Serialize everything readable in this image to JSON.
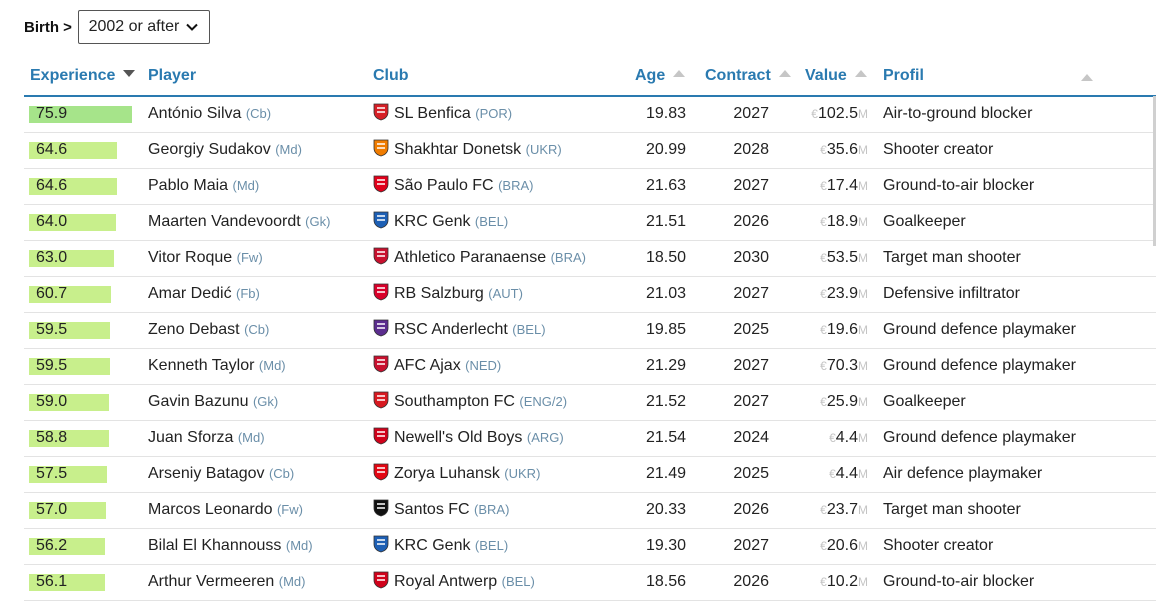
{
  "filter": {
    "label": "Birth >",
    "value": "2002 or after"
  },
  "columns": {
    "experience": "Experience",
    "player": "Player",
    "club": "Club",
    "age": "Age",
    "contract": "Contract",
    "value": "Value",
    "profil": "Profil"
  },
  "currency": "€",
  "unit": "M",
  "rows": [
    {
      "exp": "75.9",
      "player": "António Silva",
      "pos": "(Cb)",
      "club": "SL Benfica",
      "country": "(POR)",
      "age": "19.83",
      "contract": "2027",
      "value": "102.5",
      "profil": "Air-to-ground blocker",
      "crest": "benfica-crest-icon",
      "color": "#d61f26"
    },
    {
      "exp": "64.6",
      "player": "Georgiy Sudakov",
      "pos": "(Md)",
      "club": "Shakhtar Donetsk",
      "country": "(UKR)",
      "age": "20.99",
      "contract": "2028",
      "value": "35.6",
      "profil": "Shooter creator",
      "crest": "shakhtar-crest-icon",
      "color": "#f07c00"
    },
    {
      "exp": "64.6",
      "player": "Pablo Maia",
      "pos": "(Md)",
      "club": "São Paulo FC",
      "country": "(BRA)",
      "age": "21.63",
      "contract": "2027",
      "value": "17.4",
      "profil": "Ground-to-air blocker",
      "crest": "sao-paulo-crest-icon",
      "color": "#e0001a"
    },
    {
      "exp": "64.0",
      "player": "Maarten Vandevoordt",
      "pos": "(Gk)",
      "club": "KRC Genk",
      "country": "(BEL)",
      "age": "21.51",
      "contract": "2026",
      "value": "18.9",
      "profil": "Goalkeeper",
      "crest": "genk-crest-icon",
      "color": "#1d5fb4"
    },
    {
      "exp": "63.0",
      "player": "Vitor Roque",
      "pos": "(Fw)",
      "club": "Athletico Paranaense",
      "country": "(BRA)",
      "age": "18.50",
      "contract": "2030",
      "value": "53.5",
      "profil": "Target man shooter",
      "crest": "athletico-crest-icon",
      "color": "#c8102e"
    },
    {
      "exp": "60.7",
      "player": "Amar Dedić",
      "pos": "(Fb)",
      "club": "RB Salzburg",
      "country": "(AUT)",
      "age": "21.03",
      "contract": "2027",
      "value": "23.9",
      "profil": "Defensive infiltrator",
      "crest": "salzburg-crest-icon",
      "color": "#d9002a"
    },
    {
      "exp": "59.5",
      "player": "Zeno Debast",
      "pos": "(Cb)",
      "club": "RSC Anderlecht",
      "country": "(BEL)",
      "age": "19.85",
      "contract": "2025",
      "value": "19.6",
      "profil": "Ground defence playmaker",
      "crest": "anderlecht-crest-icon",
      "color": "#5b2d8e"
    },
    {
      "exp": "59.5",
      "player": "Kenneth Taylor",
      "pos": "(Md)",
      "club": "AFC Ajax",
      "country": "(NED)",
      "age": "21.29",
      "contract": "2027",
      "value": "70.3",
      "profil": "Ground defence playmaker",
      "crest": "ajax-crest-icon",
      "color": "#c8102e"
    },
    {
      "exp": "59.0",
      "player": "Gavin Bazunu",
      "pos": "(Gk)",
      "club": "Southampton FC",
      "country": "(ENG/2)",
      "age": "21.52",
      "contract": "2027",
      "value": "25.9",
      "profil": "Goalkeeper",
      "crest": "southampton-crest-icon",
      "color": "#d71920"
    },
    {
      "exp": "58.8",
      "player": "Juan Sforza",
      "pos": "(Md)",
      "club": "Newell's Old Boys",
      "country": "(ARG)",
      "age": "21.54",
      "contract": "2024",
      "value": "4.4",
      "profil": "Ground defence playmaker",
      "crest": "newells-crest-icon",
      "color": "#d0021b"
    },
    {
      "exp": "57.5",
      "player": "Arseniy Batagov",
      "pos": "(Cb)",
      "club": "Zorya Luhansk",
      "country": "(UKR)",
      "age": "21.49",
      "contract": "2025",
      "value": "4.4",
      "profil": "Air defence playmaker",
      "crest": "zorya-crest-icon",
      "color": "#e30613"
    },
    {
      "exp": "57.0",
      "player": "Marcos Leonardo",
      "pos": "(Fw)",
      "club": "Santos FC",
      "country": "(BRA)",
      "age": "20.33",
      "contract": "2026",
      "value": "23.7",
      "profil": "Target man shooter",
      "crest": "santos-crest-icon",
      "color": "#111111"
    },
    {
      "exp": "56.2",
      "player": "Bilal El Khannouss",
      "pos": "(Md)",
      "club": "KRC Genk",
      "country": "(BEL)",
      "age": "19.30",
      "contract": "2027",
      "value": "20.6",
      "profil": "Shooter creator",
      "crest": "genk-crest-icon",
      "color": "#1d5fb4"
    },
    {
      "exp": "56.1",
      "player": "Arthur Vermeeren",
      "pos": "(Md)",
      "club": "Royal Antwerp",
      "country": "(BEL)",
      "age": "18.56",
      "contract": "2026",
      "value": "10.2",
      "profil": "Ground-to-air blocker",
      "crest": "antwerp-crest-icon",
      "color": "#d0021b"
    }
  ]
}
